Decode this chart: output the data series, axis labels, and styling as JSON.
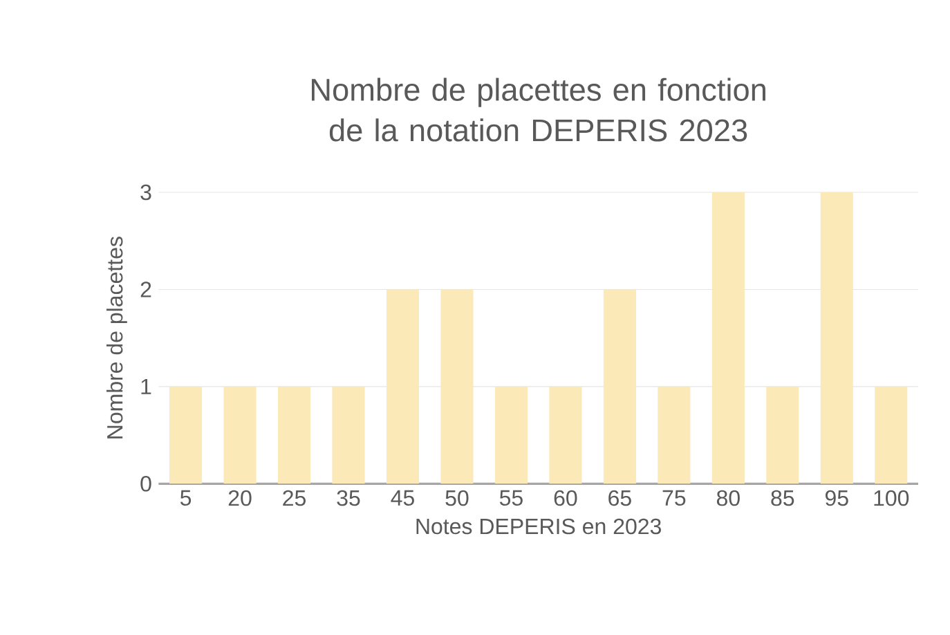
{
  "chart_data": {
    "type": "bar",
    "title": "Nombre de placettes en fonction de la notation DEPERIS 2023",
    "xlabel": "Notes DEPERIS en 2023",
    "ylabel": "Nombre de placettes",
    "categories": [
      "5",
      "20",
      "25",
      "35",
      "45",
      "50",
      "55",
      "60",
      "65",
      "75",
      "80",
      "85",
      "95",
      "100"
    ],
    "values": [
      1,
      1,
      1,
      1,
      2,
      2,
      1,
      1,
      2,
      1,
      3,
      1,
      3,
      1
    ],
    "color": "#fbe9b7",
    "ylim": [
      0,
      3
    ],
    "yticks": [
      0,
      1,
      2,
      3
    ],
    "grid": "y"
  }
}
